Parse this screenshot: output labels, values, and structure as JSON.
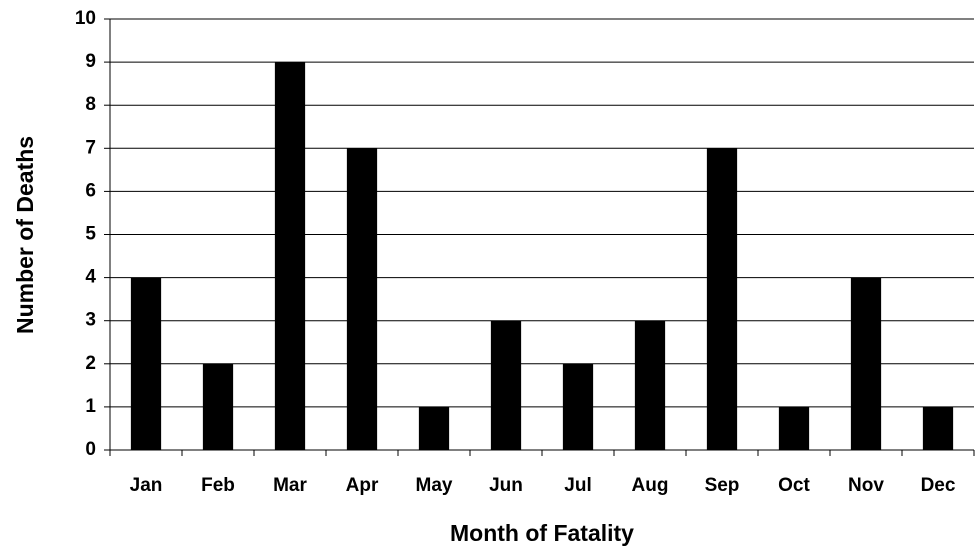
{
  "chart_data": {
    "type": "bar",
    "x_label": "Month of Fatality",
    "y_label": "Number of Deaths",
    "categories": [
      "Jan",
      "Feb",
      "Mar",
      "Apr",
      "May",
      "Jun",
      "Jul",
      "Aug",
      "Sep",
      "Oct",
      "Nov",
      "Dec"
    ],
    "values": [
      4,
      2,
      9,
      7,
      1,
      3,
      2,
      3,
      7,
      1,
      4,
      1
    ],
    "color": "#000000",
    "ylim": [
      0,
      10
    ],
    "yticks": [
      0,
      1,
      2,
      3,
      4,
      5,
      6,
      7,
      8,
      9,
      10
    ],
    "grid": true
  }
}
